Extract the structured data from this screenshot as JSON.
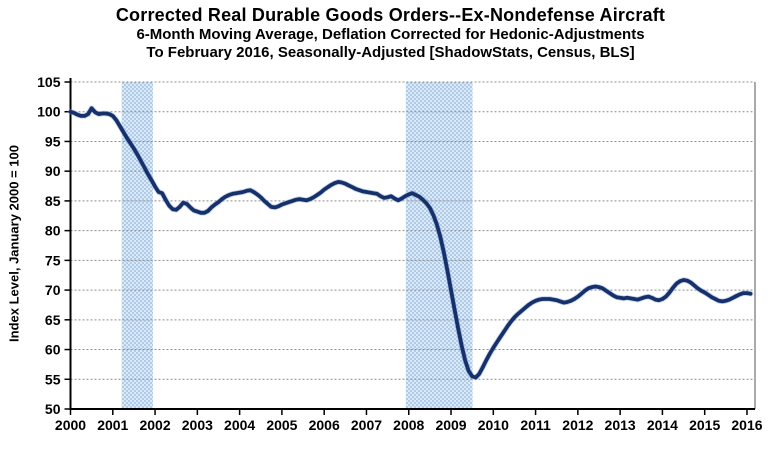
{
  "title": {
    "line1": "Corrected Real Durable Goods Orders--Ex-Nondefense Aircraft",
    "line2": "6-Month Moving Average, Deflation Corrected for Hedonic-Adjustments",
    "line3": "To February 2016, Seasonally-Adjusted [ShadowStats, Census, BLS]"
  },
  "y_axis": {
    "label": "Index Level, January 2000 = 100",
    "ticks": [
      105,
      100,
      95,
      90,
      85,
      80,
      75,
      70,
      65,
      60,
      55,
      50
    ],
    "min": 50,
    "max": 105
  },
  "x_axis": {
    "ticks": [
      2000,
      2001,
      2002,
      2003,
      2004,
      2005,
      2006,
      2007,
      2008,
      2009,
      2010,
      2011,
      2012,
      2013,
      2014,
      2015,
      2016
    ]
  },
  "colors": {
    "line": "#16306b",
    "line_halo": "#7d9bd1",
    "band_light": "#dce9f7",
    "band_dark": "#aecbe9",
    "grid": "#8c8c8c",
    "axis": "#000000"
  },
  "chart_data": {
    "type": "line",
    "title": "Corrected Real Durable Goods Orders--Ex-Nondefense Aircraft",
    "subtitle1": "6-Month Moving Average, Deflation Corrected for Hedonic-Adjustments",
    "subtitle2": "To February 2016, Seasonally-Adjusted [ShadowStats, Census, BLS]",
    "ylabel": "Index Level, January 2000 = 100",
    "xlabel": "",
    "ylim": [
      50,
      105
    ],
    "xlim": [
      2000,
      2016.25
    ],
    "grid": true,
    "legend": false,
    "x_start_year": 2000,
    "x_interval": "monthly",
    "x_end_label": "February 2016",
    "shaded_bands_years": [
      [
        2001.21,
        2001.95
      ],
      [
        2007.93,
        2009.51
      ]
    ],
    "values": [
      100.0,
      99.8,
      99.5,
      99.3,
      99.3,
      99.6,
      100.6,
      99.9,
      99.6,
      99.7,
      99.7,
      99.6,
      99.3,
      98.6,
      97.6,
      96.6,
      95.6,
      94.7,
      93.8,
      92.8,
      91.7,
      90.6,
      89.5,
      88.5,
      87.4,
      86.5,
      86.3,
      85.2,
      84.2,
      83.6,
      83.5,
      84.0,
      84.7,
      84.5,
      83.9,
      83.4,
      83.2,
      83.0,
      83.0,
      83.3,
      83.9,
      84.4,
      84.8,
      85.3,
      85.7,
      86.0,
      86.2,
      86.3,
      86.4,
      86.5,
      86.7,
      86.8,
      86.5,
      86.1,
      85.6,
      85.0,
      84.5,
      84.0,
      83.9,
      84.1,
      84.4,
      84.6,
      84.8,
      85.0,
      85.2,
      85.3,
      85.2,
      85.1,
      85.3,
      85.6,
      86.0,
      86.4,
      86.9,
      87.3,
      87.7,
      88.0,
      88.2,
      88.1,
      87.9,
      87.6,
      87.3,
      87.0,
      86.8,
      86.6,
      86.5,
      86.4,
      86.3,
      86.2,
      85.8,
      85.5,
      85.6,
      85.8,
      85.4,
      85.1,
      85.4,
      85.8,
      86.1,
      86.3,
      86.0,
      85.7,
      85.2,
      84.6,
      83.8,
      82.6,
      81.0,
      78.9,
      76.2,
      73.2,
      70.0,
      66.8,
      63.6,
      60.7,
      58.2,
      56.4,
      55.5,
      55.3,
      55.9,
      57.0,
      58.2,
      59.3,
      60.3,
      61.2,
      62.1,
      63.0,
      63.9,
      64.7,
      65.4,
      66.0,
      66.5,
      67.0,
      67.5,
      67.9,
      68.2,
      68.4,
      68.5,
      68.5,
      68.5,
      68.4,
      68.3,
      68.1,
      67.9,
      68.0,
      68.2,
      68.5,
      68.9,
      69.4,
      69.9,
      70.3,
      70.5,
      70.6,
      70.5,
      70.3,
      69.9,
      69.5,
      69.1,
      68.8,
      68.7,
      68.6,
      68.7,
      68.6,
      68.5,
      68.4,
      68.6,
      68.8,
      68.9,
      68.7,
      68.4,
      68.3,
      68.5,
      68.9,
      69.6,
      70.4,
      71.1,
      71.5,
      71.7,
      71.6,
      71.3,
      70.8,
      70.3,
      69.9,
      69.6,
      69.2,
      68.8,
      68.5,
      68.2,
      68.1,
      68.2,
      68.4,
      68.7,
      69.0,
      69.3,
      69.5,
      69.5,
      69.4
    ]
  }
}
